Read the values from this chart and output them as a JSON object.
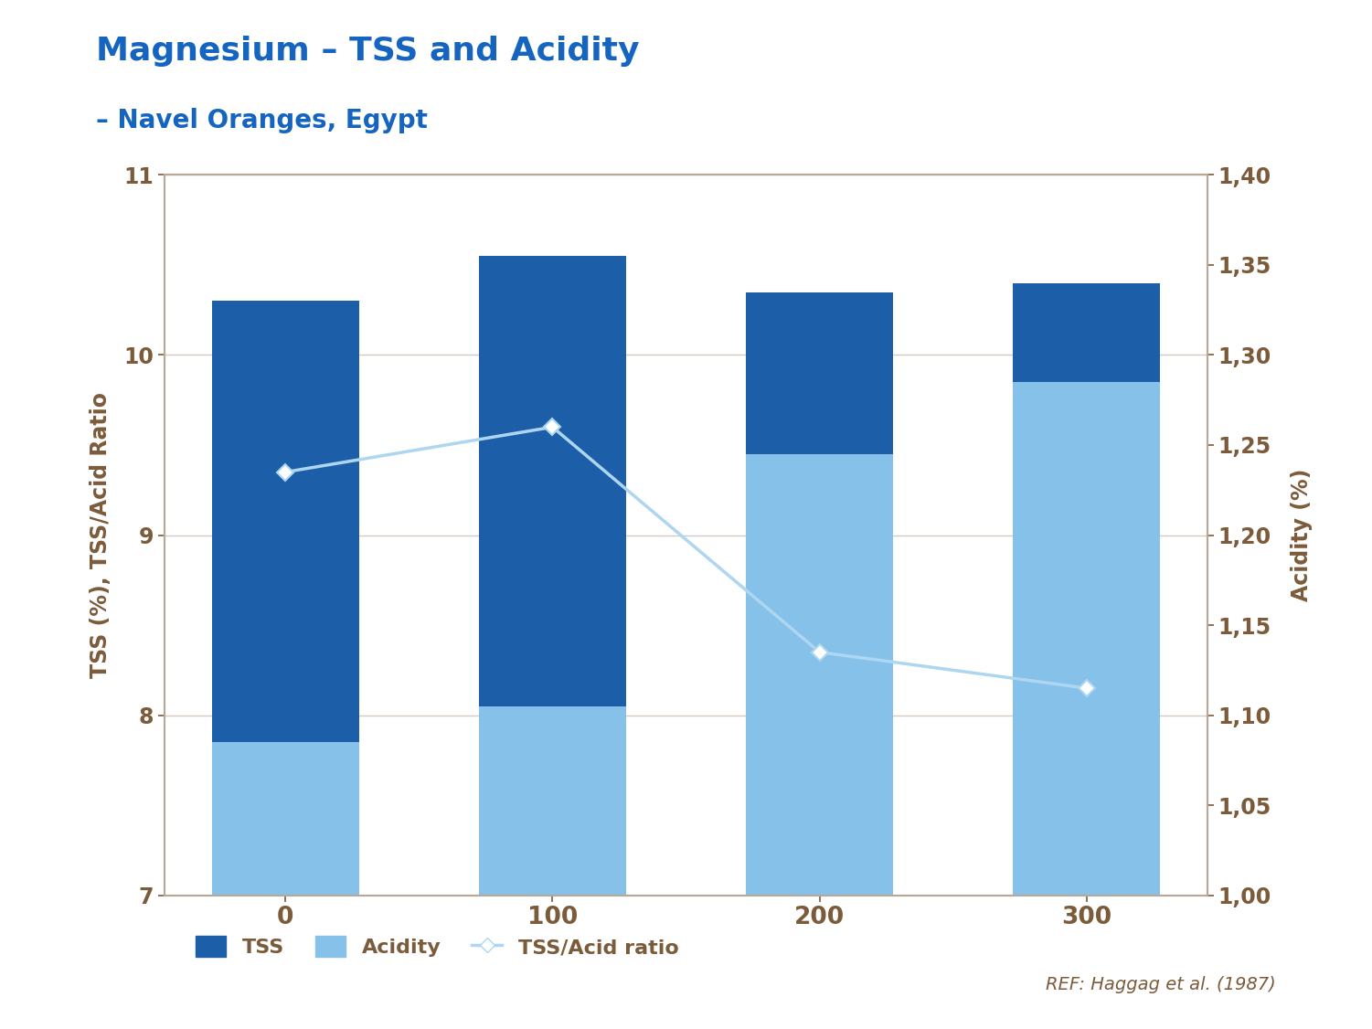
{
  "title": "Magnesium – TSS and Acidity",
  "subtitle": "– Navel Oranges, Egypt",
  "title_color": "#1565C0",
  "subtitle_color": "#1565C0",
  "left_ylabel": "TSS (%), TSS/Acid Ratio",
  "right_ylabel": "Acidity (%)",
  "ylabel_color": "#7B5B3A",
  "categories": [
    0,
    100,
    200,
    300
  ],
  "tss_values": [
    10.3,
    10.55,
    10.35,
    10.4
  ],
  "acidity_bar_values": [
    7.85,
    8.05,
    9.45,
    9.85
  ],
  "tss_acid_ratio": [
    9.35,
    9.6,
    8.35,
    8.15
  ],
  "tss_color": "#1C5FA8",
  "acidity_bar_color": "#85C1E9",
  "line_color": "#AED6F1",
  "axis_color": "#B8A898",
  "tick_color": "#7B5B3A",
  "grid_color": "#D5C9C0",
  "left_ylim": [
    7,
    11
  ],
  "left_yticks": [
    7,
    8,
    9,
    10,
    11
  ],
  "right_ylim": [
    1.0,
    1.4
  ],
  "right_yticks": [
    1.0,
    1.05,
    1.1,
    1.15,
    1.2,
    1.25,
    1.3,
    1.35,
    1.4
  ],
  "ref_text": "REF: Haggag et al. (1987)",
  "ref_color": "#7B5B3A",
  "legend_labels": [
    "TSS",
    "Acidity",
    "TSS/Acid ratio"
  ],
  "background_color": "#FFFFFF",
  "bar_width": 0.55,
  "title_fontsize": 26,
  "subtitle_fontsize": 20,
  "ylabel_fontsize": 17,
  "tick_fontsize": 17,
  "legend_fontsize": 16,
  "ref_fontsize": 14
}
